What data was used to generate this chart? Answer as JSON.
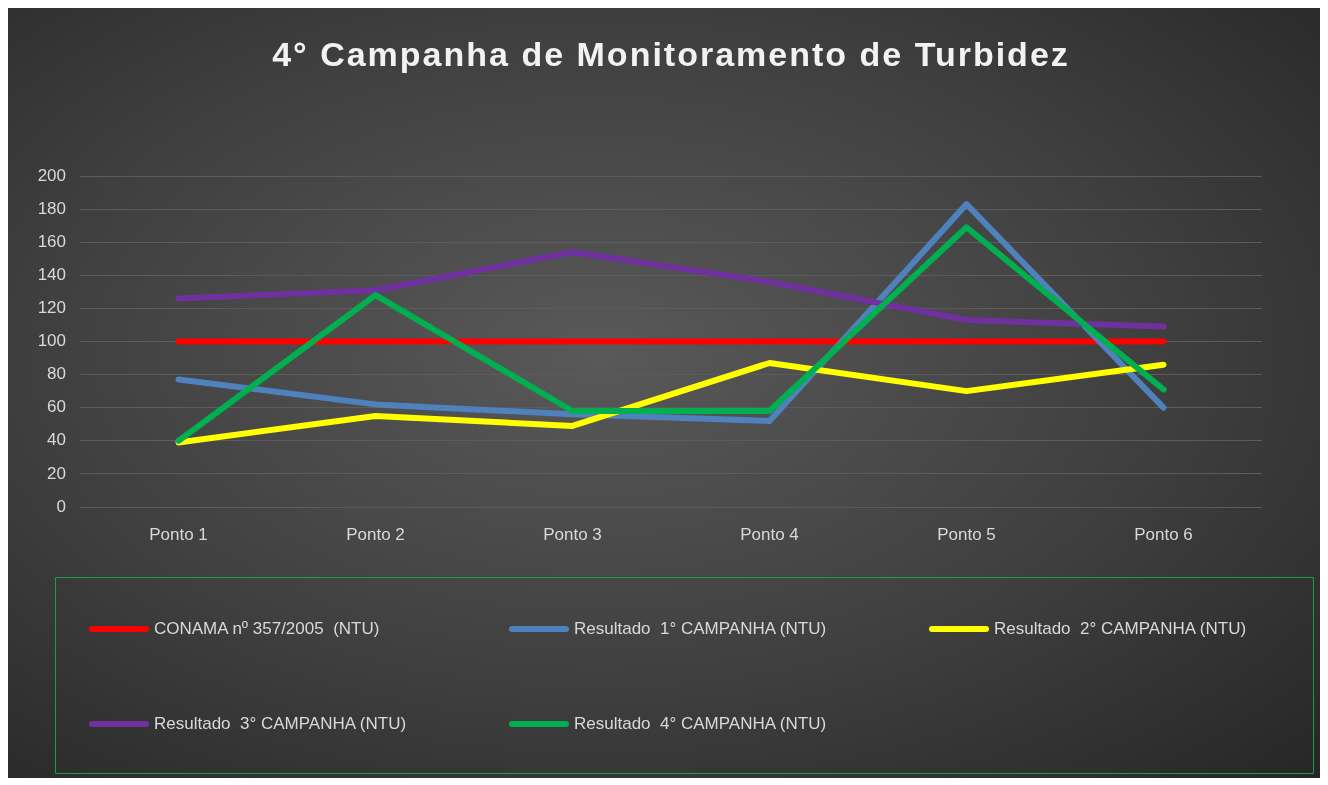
{
  "chart_data": {
    "type": "line",
    "title": "4° Campanha de Monitoramento de Turbidez",
    "categories": [
      "Ponto 1",
      "Ponto 2",
      "Ponto 3",
      "Ponto 4",
      "Ponto 5",
      "Ponto 6"
    ],
    "series": [
      {
        "name": "CONAMA nº 357/2005  (NTU)",
        "color": "#ff0000",
        "values": [
          100,
          100,
          100,
          100,
          100,
          100
        ]
      },
      {
        "name": "Resultado  1° CAMPANHA (NTU)",
        "color": "#4f81bd",
        "values": [
          77,
          62,
          56,
          52,
          183,
          60
        ]
      },
      {
        "name": "Resultado  2° CAMPANHA (NTU)",
        "color": "#ffff00",
        "values": [
          39,
          55,
          49,
          87,
          70,
          86
        ]
      },
      {
        "name": "Resultado  3° CAMPANHA (NTU)",
        "color": "#7030a0",
        "values": [
          126,
          131,
          154,
          136,
          113,
          109
        ]
      },
      {
        "name": "Resultado  4° CAMPANHA (NTU)",
        "color": "#00b050",
        "values": [
          40,
          128,
          58,
          58,
          169,
          71
        ]
      }
    ],
    "ylim": [
      0,
      200
    ],
    "yticks": [
      0,
      20,
      40,
      60,
      80,
      100,
      120,
      140,
      160,
      180,
      200
    ],
    "grid": "y",
    "legend": "bottom",
    "marker": "none",
    "line_style": "solid"
  }
}
